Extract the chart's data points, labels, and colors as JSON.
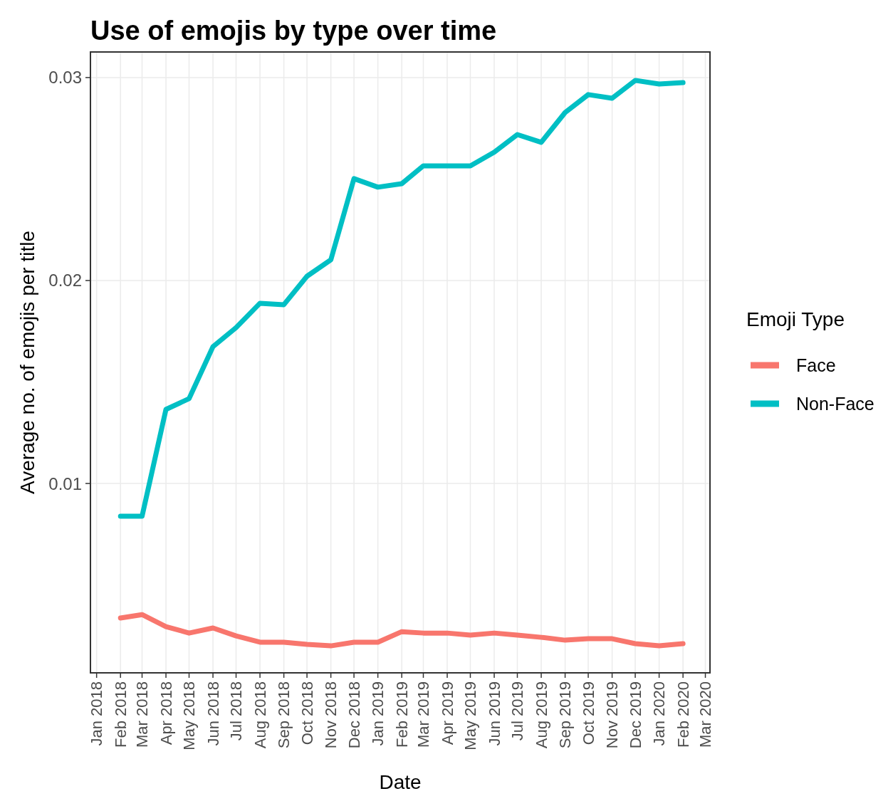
{
  "chart_data": {
    "type": "line",
    "title": "Use of emojis by type over time",
    "xlabel": "Date",
    "ylabel": "Average no. of emojis per title",
    "legend_title": "Emoji Type",
    "legend": "right",
    "grid": true,
    "line_style": "solid",
    "marker": "none",
    "x": [
      "2018-02",
      "2018-03",
      "2018-04",
      "2018-05",
      "2018-06",
      "2018-07",
      "2018-08",
      "2018-09",
      "2018-10",
      "2018-11",
      "2018-12",
      "2019-01",
      "2019-02",
      "2019-03",
      "2019-04",
      "2019-05",
      "2019-06",
      "2019-07",
      "2019-08",
      "2019-09",
      "2019-10",
      "2019-11",
      "2019-12",
      "2020-01",
      "2020-02"
    ],
    "series": [
      {
        "name": "Face",
        "color": "#f8766d",
        "values": [
          0.00337,
          0.00354,
          0.00295,
          0.00263,
          0.00288,
          0.00249,
          0.00218,
          0.00218,
          0.00207,
          0.002,
          0.00218,
          0.00218,
          0.0027,
          0.00263,
          0.00263,
          0.00253,
          0.00263,
          0.00253,
          0.00242,
          0.00228,
          0.00235,
          0.00235,
          0.00211,
          0.002,
          0.00211
        ]
      },
      {
        "name": "Non-Face",
        "color": "#00bfc4",
        "values": [
          0.00839,
          0.00839,
          0.01365,
          0.01418,
          0.01674,
          0.01768,
          0.01888,
          0.01881,
          0.02021,
          0.02102,
          0.02502,
          0.0246,
          0.02477,
          0.02565,
          0.02565,
          0.02565,
          0.02632,
          0.02719,
          0.02681,
          0.02828,
          0.02916,
          0.02898,
          0.02986,
          0.02968,
          0.02975
        ]
      }
    ],
    "xlim": [
      "2017-12-24",
      "2020-03-07"
    ],
    "xticks": [
      {
        "value": "2018-01",
        "label": "Jan 2018"
      },
      {
        "value": "2018-02",
        "label": "Feb 2018"
      },
      {
        "value": "2018-03",
        "label": "Mar 2018"
      },
      {
        "value": "2018-04",
        "label": "Apr 2018"
      },
      {
        "value": "2018-05",
        "label": "May 2018"
      },
      {
        "value": "2018-06",
        "label": "Jun 2018"
      },
      {
        "value": "2018-07",
        "label": "Jul 2018"
      },
      {
        "value": "2018-08",
        "label": "Aug 2018"
      },
      {
        "value": "2018-09",
        "label": "Sep 2018"
      },
      {
        "value": "2018-10",
        "label": "Oct 2018"
      },
      {
        "value": "2018-11",
        "label": "Nov 2018"
      },
      {
        "value": "2018-12",
        "label": "Dec 2018"
      },
      {
        "value": "2019-01",
        "label": "Jan 2019"
      },
      {
        "value": "2019-02",
        "label": "Feb 2019"
      },
      {
        "value": "2019-03",
        "label": "Mar 2019"
      },
      {
        "value": "2019-04",
        "label": "Apr 2019"
      },
      {
        "value": "2019-05",
        "label": "May 2019"
      },
      {
        "value": "2019-06",
        "label": "Jun 2019"
      },
      {
        "value": "2019-07",
        "label": "Jul 2019"
      },
      {
        "value": "2019-08",
        "label": "Aug 2019"
      },
      {
        "value": "2019-09",
        "label": "Sep 2019"
      },
      {
        "value": "2019-10",
        "label": "Oct 2019"
      },
      {
        "value": "2019-11",
        "label": "Nov 2019"
      },
      {
        "value": "2019-12",
        "label": "Dec 2019"
      },
      {
        "value": "2020-01",
        "label": "Jan 2020"
      },
      {
        "value": "2020-02",
        "label": "Feb 2020"
      },
      {
        "value": "2020-03",
        "label": "Mar 2020"
      }
    ],
    "ylim": [
      0.00067,
      0.03126
    ],
    "yticks": [
      0.01,
      0.02,
      0.03
    ]
  }
}
